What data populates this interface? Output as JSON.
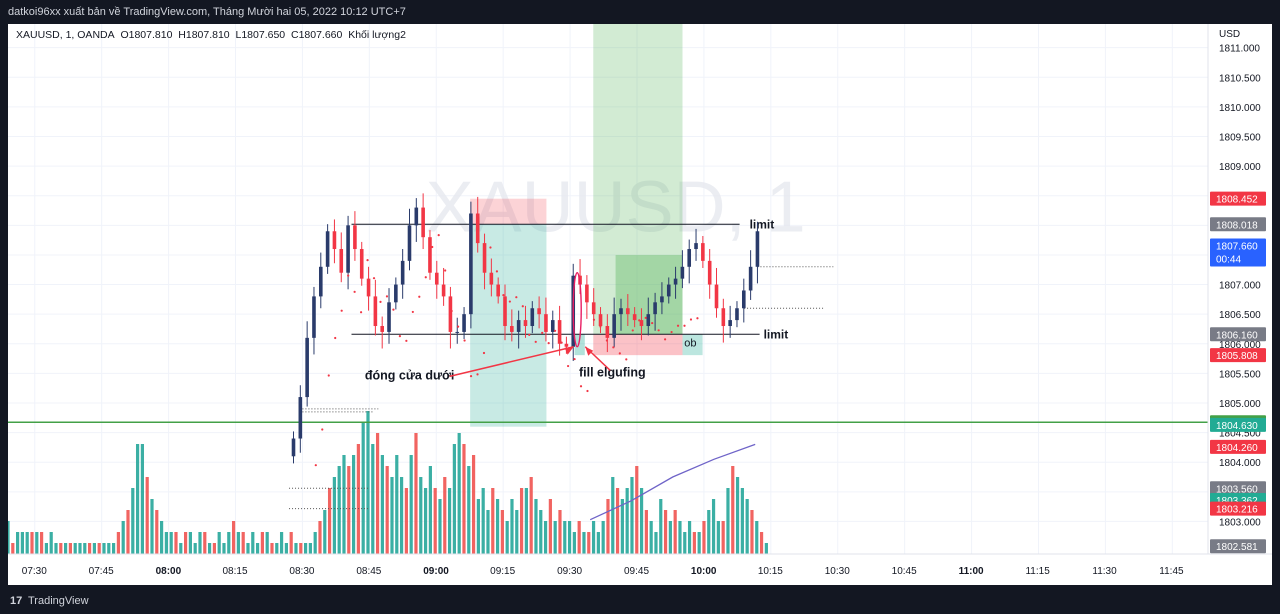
{
  "header": {
    "publish_line": "datkoi96xx xuất bản về TradingView.com, Tháng Mười hai 05, 2022 10:12 UTC+7"
  },
  "legend": {
    "symbol_line": "XAUUSD, 1, OANDA",
    "open": "O1807.810",
    "high": "H1807.810",
    "low": "L1807.650",
    "close": "C1807.660",
    "volume": "Khối lượng2"
  },
  "footer": {
    "logo": "17",
    "brand": "TradingView"
  },
  "chart_data": {
    "type": "candlestick",
    "symbol": "XAUUSD",
    "interval": "1",
    "watermark": "XAUUSD, 1",
    "currency": "USD",
    "y_range": [
      1802.45,
      1811.4
    ],
    "y_ticks": [
      "1811.000",
      "1810.500",
      "1810.000",
      "1809.500",
      "1809.000",
      "1808.500",
      "1808.000",
      "1807.500",
      "1807.000",
      "1806.500",
      "1806.000",
      "1805.500",
      "1805.000",
      "1804.500",
      "1804.000",
      "1803.500",
      "1803.000"
    ],
    "x_range": [
      "07:24",
      "11:53"
    ],
    "x_ticks": [
      {
        "t": "07:30",
        "bold": false
      },
      {
        "t": "07:45",
        "bold": false
      },
      {
        "t": "08:00",
        "bold": true
      },
      {
        "t": "08:15",
        "bold": false
      },
      {
        "t": "08:30",
        "bold": false
      },
      {
        "t": "08:45",
        "bold": false
      },
      {
        "t": "09:00",
        "bold": true
      },
      {
        "t": "09:15",
        "bold": false
      },
      {
        "t": "09:30",
        "bold": false
      },
      {
        "t": "09:45",
        "bold": false
      },
      {
        "t": "10:00",
        "bold": true
      },
      {
        "t": "10:15",
        "bold": false
      },
      {
        "t": "10:30",
        "bold": false
      },
      {
        "t": "10:45",
        "bold": false
      },
      {
        "t": "11:00",
        "bold": true
      },
      {
        "t": "11:15",
        "bold": false
      },
      {
        "t": "11:30",
        "bold": false
      },
      {
        "t": "11:45",
        "bold": false
      }
    ],
    "candle_start": "08:28",
    "price_path": [
      1804.4,
      1805.1,
      1806.1,
      1806.8,
      1807.3,
      1807.9,
      1807.6,
      1807.2,
      1808.0,
      1807.6,
      1807.1,
      1806.8,
      1806.3,
      1806.2,
      1806.7,
      1807.0,
      1807.4,
      1808.0,
      1808.3,
      1807.8,
      1807.2,
      1807.0,
      1806.8,
      1806.2,
      1806.2,
      1806.5,
      1808.2,
      1807.7,
      1807.2,
      1807.0,
      1806.8,
      1806.3,
      1806.2,
      1806.4,
      1806.3,
      1806.6,
      1806.5,
      1806.2,
      1806.4,
      1806.0,
      1805.95,
      1807.15,
      1807.0,
      1806.7,
      1806.5,
      1806.3,
      1806.1,
      1806.5,
      1806.6,
      1806.5,
      1806.4,
      1806.3,
      1806.5,
      1806.7,
      1806.8,
      1807.0,
      1807.1,
      1807.3,
      1807.6,
      1807.7,
      1807.4,
      1807.0,
      1806.6,
      1806.3,
      1806.4,
      1806.6,
      1806.9,
      1807.3,
      1807.9
    ],
    "volume_series": [
      {
        "name": "Volume",
        "values": [
          3,
          1,
          2,
          2,
          2,
          2,
          2,
          2,
          1,
          2,
          1,
          1,
          1,
          1,
          1,
          1,
          1,
          1,
          1,
          1,
          1,
          1,
          1,
          2,
          3,
          4,
          6,
          10,
          10,
          7,
          5,
          4,
          3,
          2,
          2,
          2,
          1,
          2,
          2,
          1,
          2,
          2,
          1,
          1,
          2,
          1,
          2,
          3,
          2,
          2,
          1,
          2,
          1,
          2,
          2,
          1,
          1,
          2,
          1,
          2,
          1,
          1,
          1,
          1,
          2,
          3,
          4,
          6,
          7,
          8,
          9,
          8,
          9,
          10,
          12,
          13,
          10,
          11,
          9,
          8,
          7,
          9,
          7,
          6,
          9,
          11,
          7,
          6,
          8,
          6,
          5,
          7,
          6,
          10,
          11,
          10,
          8,
          9,
          5,
          6,
          4,
          6,
          5,
          4,
          3,
          5,
          4,
          6,
          6,
          7,
          5,
          4,
          3,
          5,
          3,
          4,
          3,
          3,
          2,
          3,
          2,
          2,
          3,
          2,
          3,
          5,
          7,
          6,
          5,
          6,
          7,
          8,
          6,
          4,
          3,
          2,
          5,
          4,
          3,
          4,
          3,
          2,
          3,
          2,
          2,
          3,
          4,
          5,
          3,
          3,
          6,
          8,
          7,
          6,
          5,
          4,
          3,
          2,
          1
        ]
      },
      {
        "name": "Volume MA",
        "values": [
          1803.03,
          1803.35,
          1803.75,
          1804.05,
          1804.3
        ]
      }
    ],
    "price_labels": [
      {
        "v": "1808.452",
        "bg": "#f23645"
      },
      {
        "v": "1808.018",
        "bg": "#787b86"
      },
      {
        "v": "1807.660",
        "sub": "00:44",
        "bg": "#2962ff"
      },
      {
        "v": "1806.160",
        "bg": "#787b86"
      },
      {
        "v": "1805.808",
        "bg": "#f23645"
      },
      {
        "v": "1804.675",
        "bg": "#43a047"
      },
      {
        "v": "1804.630",
        "bg": "#22ab94"
      },
      {
        "v": "1804.260",
        "bg": "#f23645"
      },
      {
        "v": "1803.560",
        "bg": "#787b86"
      },
      {
        "v": "1803.362",
        "bg": "#22ab94"
      },
      {
        "v": "1803.216",
        "bg": "#f23645"
      },
      {
        "v": "1802.581",
        "bg": "#787b86"
      }
    ],
    "levels": [
      {
        "price": 1808.018,
        "label": "limit"
      },
      {
        "price": 1806.16,
        "label": "limit"
      },
      {
        "price": 1804.675,
        "label": ""
      }
    ],
    "annotations": [
      {
        "text": "đóng cửa dưới"
      },
      {
        "text": "fill elgufing"
      },
      {
        "text": "ob"
      }
    ],
    "colors": {
      "up": "#2a3b6b",
      "down": "#f23645",
      "vol_up": "#26a69a",
      "vol_down": "#ef5350",
      "green_line": "#43a047",
      "dots": "#f23645",
      "vol_ma": "#6f64c8"
    }
  }
}
